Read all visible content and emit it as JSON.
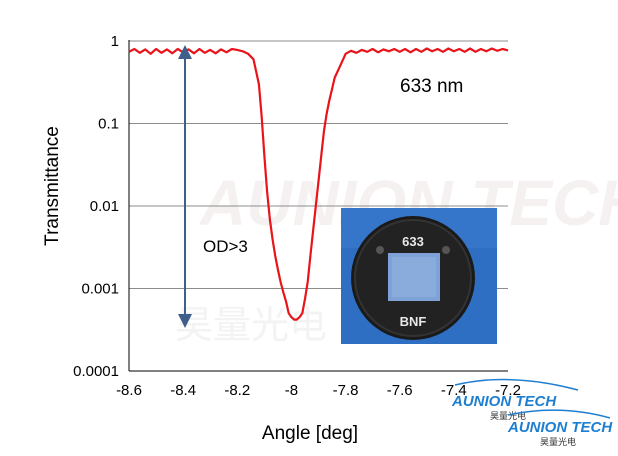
{
  "chart_data": {
    "type": "line",
    "title": "",
    "xlabel": "Angle  [deg]",
    "ylabel": "Transmittance",
    "xlim": [
      -8.6,
      -7.2
    ],
    "ylim": [
      0.0001,
      1
    ],
    "yscale": "log",
    "grid": "horizontal",
    "x_ticks": [
      "-8.6",
      "-8.4",
      "-8.2",
      "-8",
      "-7.8",
      "-7.6",
      "-7.4",
      "-7.2"
    ],
    "x_tick_values": [
      -8.6,
      -8.4,
      -8.2,
      -8.0,
      -7.8,
      -7.6,
      -7.4,
      -7.2
    ],
    "y_ticks": [
      "1",
      "0.1",
      "0.01",
      "0.001",
      "0.0001"
    ],
    "y_tick_values": [
      1,
      0.1,
      0.01,
      0.001,
      0.0001
    ],
    "series": [
      {
        "color": "#e8141a",
        "x": [
          -8.6,
          -8.58,
          -8.56,
          -8.54,
          -8.52,
          -8.5,
          -8.48,
          -8.46,
          -8.44,
          -8.42,
          -8.4,
          -8.38,
          -8.36,
          -8.34,
          -8.32,
          -8.3,
          -8.28,
          -8.26,
          -8.24,
          -8.22,
          -8.2,
          -8.18,
          -8.16,
          -8.14,
          -8.12,
          -8.11,
          -8.1,
          -8.09,
          -8.08,
          -8.07,
          -8.06,
          -8.05,
          -8.04,
          -8.03,
          -8.02,
          -8.01,
          -8.0,
          -7.99,
          -7.98,
          -7.97,
          -7.96,
          -7.95,
          -7.94,
          -7.93,
          -7.92,
          -7.91,
          -7.9,
          -7.89,
          -7.88,
          -7.87,
          -7.86,
          -7.85,
          -7.84,
          -7.82,
          -7.8,
          -7.78,
          -7.76,
          -7.74,
          -7.72,
          -7.7,
          -7.68,
          -7.66,
          -7.64,
          -7.62,
          -7.6,
          -7.58,
          -7.56,
          -7.54,
          -7.52,
          -7.5,
          -7.48,
          -7.46,
          -7.44,
          -7.42,
          -7.4,
          -7.38,
          -7.36,
          -7.34,
          -7.32,
          -7.3,
          -7.28,
          -7.26,
          -7.24,
          -7.22,
          -7.2
        ],
        "y": [
          0.74,
          0.8,
          0.72,
          0.79,
          0.7,
          0.8,
          0.72,
          0.79,
          0.71,
          0.8,
          0.73,
          0.79,
          0.71,
          0.8,
          0.72,
          0.78,
          0.71,
          0.79,
          0.73,
          0.8,
          0.78,
          0.75,
          0.7,
          0.6,
          0.3,
          0.12,
          0.04,
          0.015,
          0.007,
          0.004,
          0.0025,
          0.0017,
          0.0012,
          0.0009,
          0.0007,
          0.0005,
          0.00045,
          0.00042,
          0.00042,
          0.00045,
          0.0005,
          0.00075,
          0.0012,
          0.0025,
          0.005,
          0.01,
          0.02,
          0.04,
          0.08,
          0.13,
          0.19,
          0.26,
          0.36,
          0.5,
          0.7,
          0.76,
          0.72,
          0.78,
          0.74,
          0.8,
          0.73,
          0.79,
          0.75,
          0.8,
          0.74,
          0.8,
          0.73,
          0.8,
          0.74,
          0.81,
          0.75,
          0.8,
          0.74,
          0.81,
          0.75,
          0.8,
          0.74,
          0.81,
          0.74,
          0.8,
          0.75,
          0.81,
          0.76,
          0.8,
          0.77
        ]
      }
    ],
    "annotations": {
      "wavelength": "633 nm",
      "od_label": "OD>3"
    }
  },
  "watermark": {
    "brand": "AUNION TECH",
    "chinese": "昊量光电"
  },
  "logo": {
    "top_text": "AUNION TECH",
    "top_cn": "昊量光电",
    "bottom_text": "AUNION TECH",
    "bottom_cn": "昊量光电"
  },
  "photo": {
    "top_label": "633",
    "bottom_label": "BNF"
  }
}
